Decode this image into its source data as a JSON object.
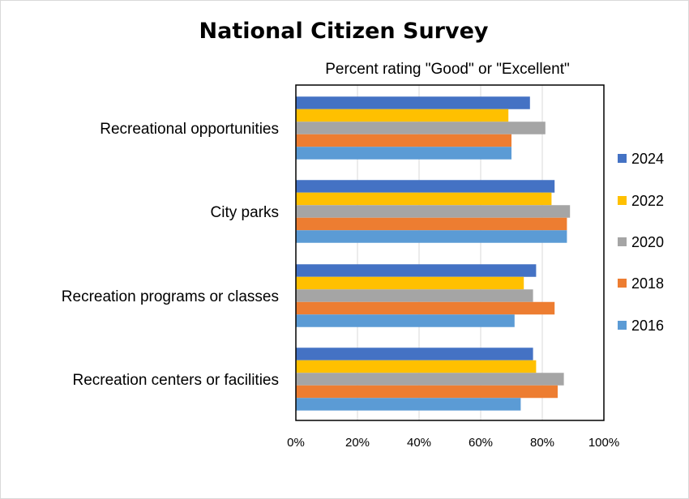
{
  "chart_data": {
    "type": "bar",
    "orientation": "horizontal",
    "title": "National Citizen Survey",
    "subtitle": "Percent rating \"Good\" or \"Excellent\"",
    "categories": [
      "Recreational opportunities",
      "City parks",
      "Recreation programs or classes",
      "Recreation centers or facilities"
    ],
    "series": [
      {
        "name": "2024",
        "color": "#4472C4",
        "values": [
          76,
          84,
          78,
          77
        ]
      },
      {
        "name": "2022",
        "color": "#FFC000",
        "values": [
          69,
          83,
          74,
          78
        ]
      },
      {
        "name": "2020",
        "color": "#A5A5A5",
        "values": [
          81,
          89,
          77,
          87
        ]
      },
      {
        "name": "2018",
        "color": "#ED7D31",
        "values": [
          70,
          88,
          84,
          85
        ]
      },
      {
        "name": "2016",
        "color": "#5B9BD5",
        "values": [
          70,
          88,
          71,
          73
        ]
      }
    ],
    "xlim": [
      0,
      100
    ],
    "xticks": [
      "0%",
      "20%",
      "40%",
      "60%",
      "80%",
      "100%"
    ],
    "grid": true,
    "legend_position": "right"
  }
}
